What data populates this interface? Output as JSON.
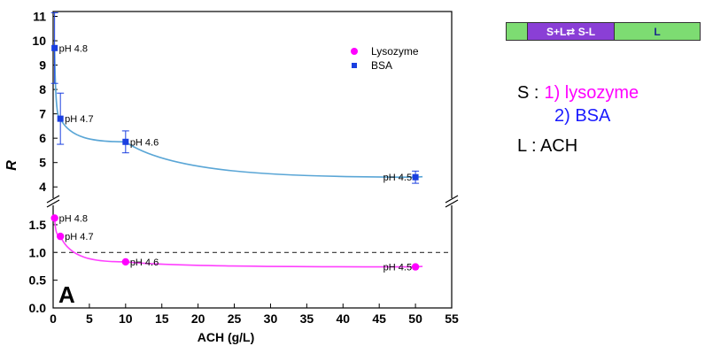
{
  "chart_data": {
    "type": "scatter",
    "panel_label": "A",
    "xlabel": "ACH (g/L)",
    "ylabel": "R",
    "xlim": [
      0,
      55
    ],
    "x_ticks": [
      "0",
      "5",
      "10",
      "15",
      "20",
      "25",
      "30",
      "35",
      "40",
      "45",
      "50",
      "55"
    ],
    "x_tick_values": [
      0,
      5,
      10,
      15,
      20,
      25,
      30,
      35,
      40,
      45,
      50,
      55
    ],
    "y_axis_break": true,
    "upper_ylim": [
      3.5,
      11.2
    ],
    "upper_y_ticks": [
      "4",
      "5",
      "6",
      "7",
      "8",
      "9",
      "10",
      "11"
    ],
    "upper_y_tick_values": [
      4,
      5,
      6,
      7,
      8,
      9,
      10,
      11
    ],
    "lower_ylim": [
      0,
      1.85
    ],
    "lower_y_ticks": [
      "0.0",
      "0.5",
      "1.0",
      "1.5"
    ],
    "lower_y_tick_values": [
      0,
      0.5,
      1.0,
      1.5
    ],
    "reference_line": 1.0,
    "legend_position": "top-right",
    "series": [
      {
        "name": "Lysozyme",
        "color": "#ff00ff",
        "fit_color": "#ff40ff",
        "marker": "circle",
        "panel": "lower",
        "points": [
          {
            "x": 0.2,
            "y": 1.62,
            "label": "pH 4.8"
          },
          {
            "x": 1.0,
            "y": 1.29,
            "label": "pH 4.7"
          },
          {
            "x": 10.0,
            "y": 0.83,
            "label": "pH 4.6"
          },
          {
            "x": 50.0,
            "y": 0.74,
            "label": "pH 4.5"
          }
        ]
      },
      {
        "name": "BSA",
        "color": "#1a3fe0",
        "fit_color": "#5aa6d6",
        "marker": "square",
        "panel": "upper",
        "points": [
          {
            "x": 0.2,
            "y": 9.7,
            "yerr": 1.45,
            "label": "pH 4.8"
          },
          {
            "x": 1.0,
            "y": 6.8,
            "yerr": 1.05,
            "label": "pH 4.7"
          },
          {
            "x": 10.0,
            "y": 5.85,
            "yerr": 0.45,
            "label": "pH 4.6"
          },
          {
            "x": 50.0,
            "y": 4.4,
            "yerr": 0.25,
            "label": "pH 4.5"
          }
        ]
      }
    ]
  },
  "scheme": {
    "bar_left": "",
    "bar_middle": "S+L⇄ S-L",
    "bar_right": "L",
    "s_prefix": "S :",
    "s_item1": "1) lysozyme",
    "s_item2": "2) BSA",
    "l_line": "L :  ACH",
    "colors": {
      "bar_green": "#7ddc72",
      "bar_purple": "#8a3fd6",
      "lysozyme": "#ff00ff",
      "bsa": "#1a1aff"
    }
  }
}
